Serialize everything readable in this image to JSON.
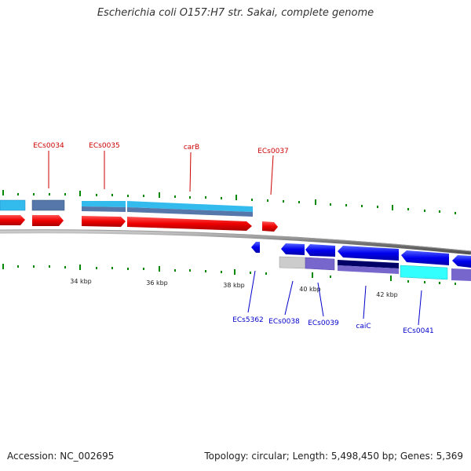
{
  "header": {
    "title": "Escherichia coli O157:H7 str. Sakai, complete genome"
  },
  "footer": {
    "accession": "Accession: NC_002695",
    "summary": "Topology: circular; Length: 5,498,450 bp; Genes: 5,369"
  },
  "colors": {
    "forward_label": "#cc0000",
    "reverse_label": "#0000cc",
    "forward_cds": "#ff0000",
    "reverse_cds": "#0000ee",
    "backbone": "#808080",
    "gc_marks": "#008800",
    "light_blue": "#33bbee",
    "steel_blue": "#5577aa",
    "cyan": "#33ffff",
    "lavender": "#7766cc",
    "navy": "#000066"
  },
  "scale": {
    "ticks": [
      {
        "label": "34 kbp"
      },
      {
        "label": "36 kbp"
      },
      {
        "label": "38 kbp"
      },
      {
        "label": "40 kbp"
      },
      {
        "label": "42 kbp"
      }
    ]
  },
  "genes": {
    "forward": [
      {
        "label": "ECs0034"
      },
      {
        "label": "ECs0035"
      },
      {
        "label": "carB"
      },
      {
        "label": "ECs0037"
      }
    ],
    "reverse": [
      {
        "label": "ECs5362"
      },
      {
        "label": "ECs0038"
      },
      {
        "label": "ECs0039"
      },
      {
        "label": "caiC"
      },
      {
        "label": "ECs0041"
      }
    ]
  }
}
